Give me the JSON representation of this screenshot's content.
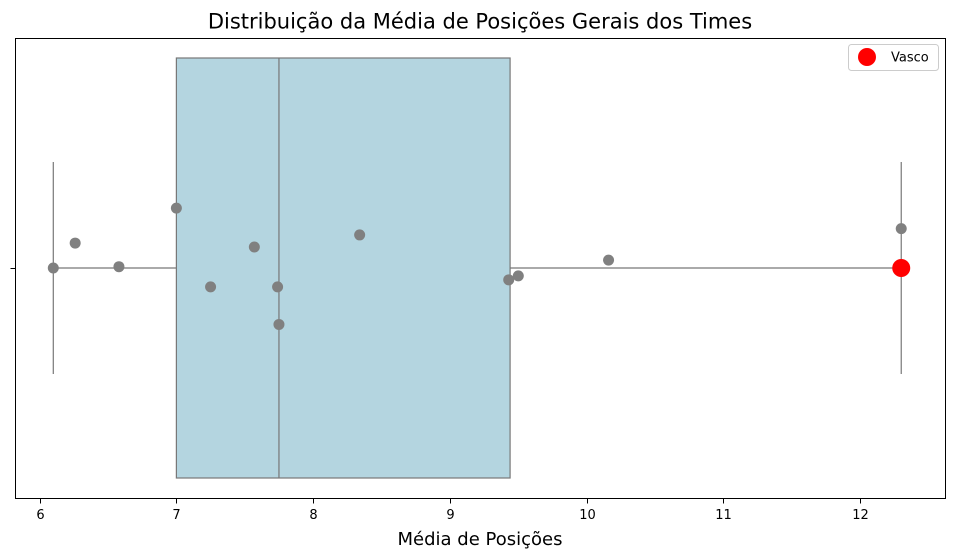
{
  "chart_data": {
    "type": "boxplot",
    "title": "Distribuição da Média de Posições Gerais dos Times",
    "xlabel": "Média de Posições",
    "ylabel": "",
    "xlim": [
      5.82,
      12.62
    ],
    "xticks": [
      "6",
      "7",
      "8",
      "9",
      "10",
      "11",
      "12"
    ],
    "grid": false,
    "legend_position": "top-right",
    "box": {
      "whisker_low": 6.1,
      "q1": 7.0,
      "median": 7.75,
      "q3": 9.44,
      "whisker_high": 12.3,
      "fill_color": "#b4d5e0",
      "edge_color": "#777777"
    },
    "points_color": "#808080",
    "points": [
      {
        "x": 6.1,
        "jitter": 0.0
      },
      {
        "x": 6.26,
        "jitter": 0.095
      },
      {
        "x": 6.58,
        "jitter": 0.005
      },
      {
        "x": 7.0,
        "jitter": 0.228
      },
      {
        "x": 7.25,
        "jitter": -0.072
      },
      {
        "x": 7.57,
        "jitter": 0.08
      },
      {
        "x": 7.74,
        "jitter": -0.072
      },
      {
        "x": 7.75,
        "jitter": -0.215
      },
      {
        "x": 8.34,
        "jitter": 0.126
      },
      {
        "x": 9.43,
        "jitter": -0.045
      },
      {
        "x": 9.5,
        "jitter": -0.03
      },
      {
        "x": 10.16,
        "jitter": 0.03
      },
      {
        "x": 12.3,
        "jitter": 0.15
      }
    ],
    "highlight": {
      "name": "Vasco",
      "x": 12.3,
      "jitter": 0.0,
      "color": "#ff0000"
    },
    "legend": [
      {
        "label": "Vasco",
        "color": "#ff0000"
      }
    ]
  }
}
